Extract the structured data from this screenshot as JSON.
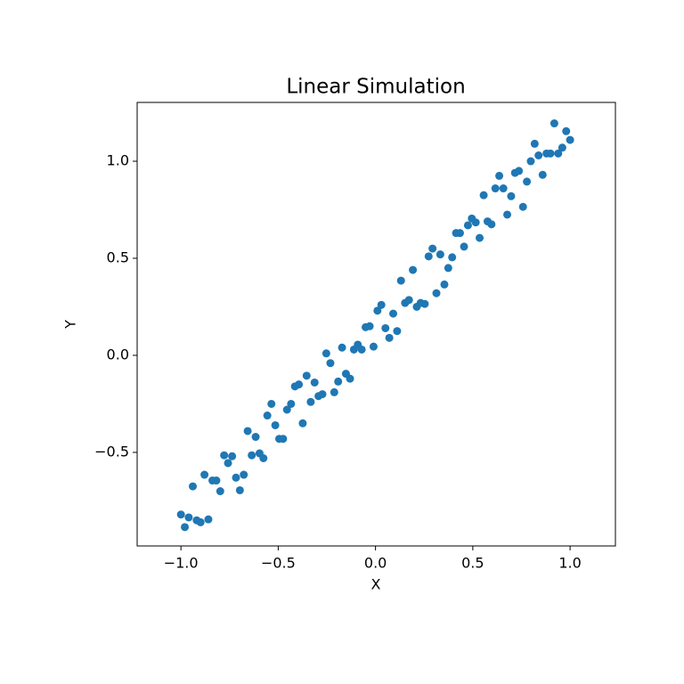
{
  "chart_data": {
    "type": "scatter",
    "title": "Linear Simulation",
    "xlabel": "X",
    "ylabel": "Y",
    "color": "#1f77b4",
    "x": [
      -1.0,
      -0.98,
      -0.96,
      -0.939,
      -0.919,
      -0.899,
      -0.879,
      -0.859,
      -0.838,
      -0.818,
      -0.798,
      -0.778,
      -0.758,
      -0.737,
      -0.717,
      -0.697,
      -0.677,
      -0.657,
      -0.636,
      -0.616,
      -0.596,
      -0.576,
      -0.556,
      -0.535,
      -0.515,
      -0.495,
      -0.475,
      -0.455,
      -0.434,
      -0.414,
      -0.394,
      -0.374,
      -0.354,
      -0.333,
      -0.313,
      -0.293,
      -0.273,
      -0.253,
      -0.232,
      -0.212,
      -0.192,
      -0.172,
      -0.152,
      -0.131,
      -0.111,
      -0.091,
      -0.071,
      -0.051,
      -0.03,
      -0.01,
      0.01,
      0.03,
      0.051,
      0.071,
      0.091,
      0.111,
      0.131,
      0.152,
      0.172,
      0.192,
      0.212,
      0.232,
      0.253,
      0.273,
      0.293,
      0.313,
      0.333,
      0.354,
      0.374,
      0.394,
      0.414,
      0.434,
      0.455,
      0.475,
      0.495,
      0.515,
      0.535,
      0.556,
      0.576,
      0.596,
      0.616,
      0.636,
      0.657,
      0.677,
      0.697,
      0.717,
      0.737,
      0.758,
      0.778,
      0.798,
      0.818,
      0.838,
      0.859,
      0.879,
      0.899,
      0.919,
      0.939,
      0.96,
      0.98,
      1.0
    ],
    "values": [
      -0.82,
      -0.885,
      -0.835,
      -0.675,
      -0.85,
      -0.86,
      -0.615,
      -0.845,
      -0.645,
      -0.645,
      -0.7,
      -0.515,
      -0.555,
      -0.52,
      -0.63,
      -0.695,
      -0.615,
      -0.39,
      -0.515,
      -0.42,
      -0.505,
      -0.53,
      -0.31,
      -0.25,
      -0.36,
      -0.43,
      -0.43,
      -0.28,
      -0.25,
      -0.16,
      -0.15,
      -0.35,
      -0.105,
      -0.24,
      -0.14,
      -0.21,
      -0.2,
      0.01,
      -0.04,
      -0.19,
      -0.135,
      0.04,
      -0.095,
      -0.12,
      0.03,
      0.055,
      0.03,
      0.145,
      0.15,
      0.045,
      0.23,
      0.26,
      0.14,
      0.09,
      0.215,
      0.125,
      0.385,
      0.27,
      0.285,
      0.44,
      0.25,
      0.27,
      0.265,
      0.51,
      0.55,
      0.32,
      0.52,
      0.365,
      0.45,
      0.505,
      0.63,
      0.63,
      0.56,
      0.67,
      0.705,
      0.685,
      0.605,
      0.825,
      0.69,
      0.675,
      0.86,
      0.925,
      0.86,
      0.725,
      0.82,
      0.94,
      0.95,
      0.765,
      0.895,
      1.0,
      1.09,
      1.03,
      0.93,
      1.04,
      1.04,
      1.195,
      1.04,
      1.07,
      1.155,
      1.11
    ],
    "xlim": [
      -1.225,
      1.233
    ],
    "ylim": [
      -0.982,
      1.303
    ],
    "xticks": [
      {
        "value": -1,
        "label": "−1.0"
      },
      {
        "value": -0.5,
        "label": "−0.5"
      },
      {
        "value": 0,
        "label": "0.0"
      },
      {
        "value": 0.5,
        "label": "0.5"
      },
      {
        "value": 1,
        "label": "1.0"
      }
    ],
    "yticks": [
      {
        "value": -0.5,
        "label": "−0.5"
      },
      {
        "value": 0,
        "label": "0.0"
      },
      0.5,
      {
        "value": 1,
        "label": "1.0"
      }
    ],
    "grid": false
  }
}
